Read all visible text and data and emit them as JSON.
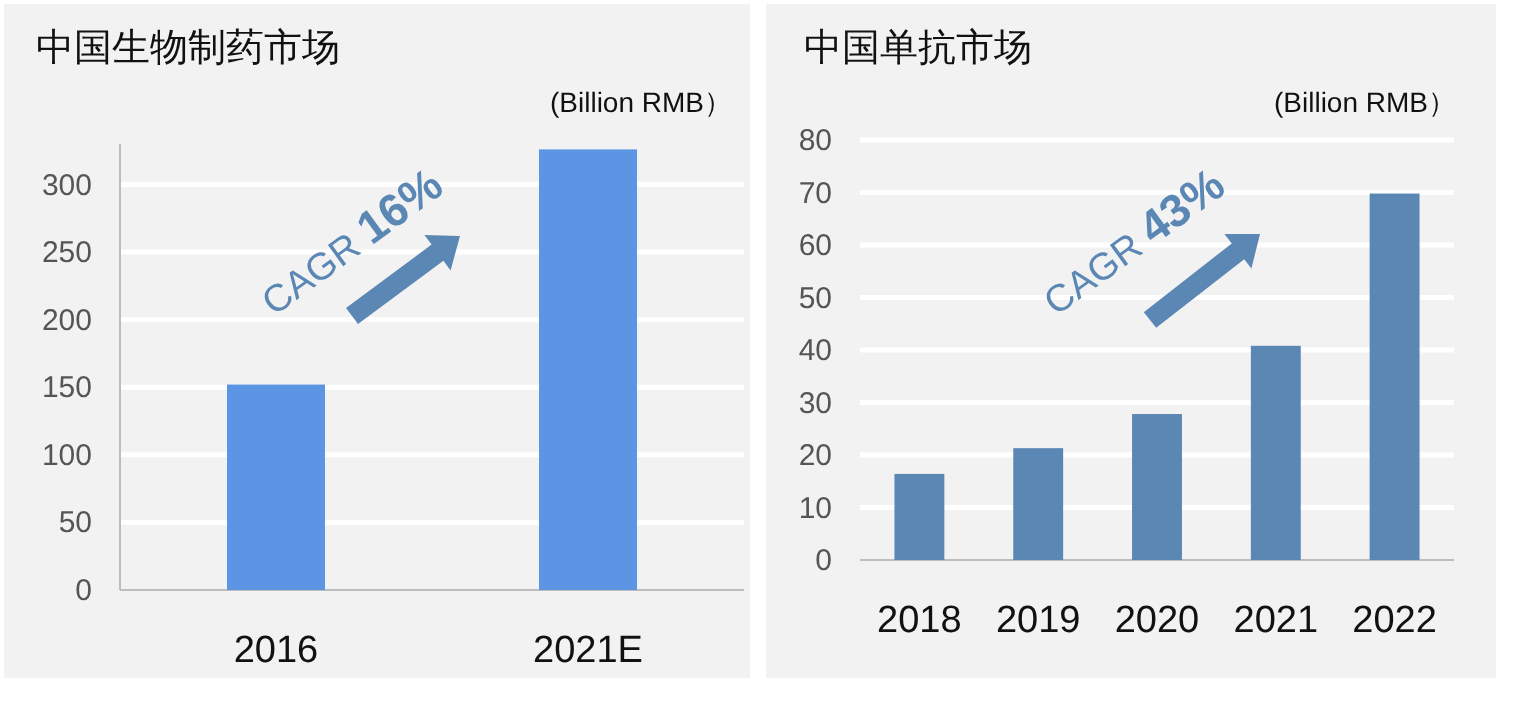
{
  "chart_data": [
    {
      "type": "bar",
      "title": "中国生物制药市场",
      "subtitle": "(Billion RMB）",
      "categories": [
        "2016",
        "2021E"
      ],
      "values": [
        152,
        326
      ],
      "color": "#5b95e3",
      "ylim": [
        0,
        330
      ],
      "yticks": [
        0,
        50,
        100,
        150,
        200,
        250,
        300
      ],
      "grid": "y",
      "annotations": [
        "CAGR 16%"
      ]
    },
    {
      "type": "bar",
      "title": "中国单抗市场",
      "subtitle": "(Billion RMB）",
      "categories": [
        "2018",
        "2019",
        "2020",
        "2021",
        "2022"
      ],
      "values": [
        16.4,
        21.3,
        27.8,
        40.8,
        69.8
      ],
      "color": "#5b87b5",
      "ylim": [
        0,
        80
      ],
      "yticks": [
        0,
        10,
        20,
        30,
        40,
        50,
        60,
        70,
        80
      ],
      "grid": "y",
      "annotations": [
        "CAGR 43%"
      ]
    }
  ]
}
